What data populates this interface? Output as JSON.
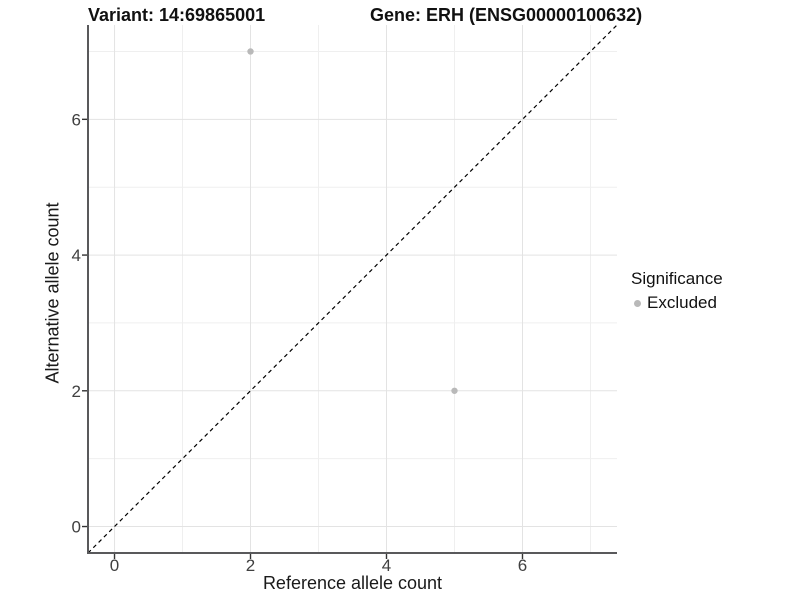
{
  "chart_data": {
    "type": "scatter",
    "title_left": "Variant: 14:69865001",
    "title_right": "Gene: ERH (ENSG00000100632)",
    "xlabel": "Reference allele count",
    "ylabel": "Alternative allele count",
    "xlim": [
      -0.39,
      7.39
    ],
    "ylim": [
      -0.39,
      7.39
    ],
    "x_major_ticks": [
      0,
      2,
      4,
      6
    ],
    "y_major_ticks": [
      0,
      2,
      4,
      6
    ],
    "x_minor_gridlines": [
      1,
      3,
      5,
      7
    ],
    "y_minor_gridlines": [
      1,
      3,
      5,
      7
    ],
    "grid": "on",
    "reference_line": {
      "type": "identity",
      "style": "dashed",
      "color": "#000000"
    },
    "series": [
      {
        "name": "Excluded",
        "color": "#b9b9b9",
        "points": [
          {
            "x": 2,
            "y": 7
          },
          {
            "x": 5,
            "y": 2
          }
        ]
      }
    ],
    "legend": {
      "title": "Significance",
      "position": "right",
      "entries": [
        {
          "label": "Excluded",
          "color": "#b9b9b9"
        }
      ]
    },
    "colors": {
      "grid_major": "#e3e3e3",
      "grid_minor": "#efefef",
      "axis_line": "#59595b",
      "tick_mark": "#333333",
      "tick_text": "#404040"
    }
  }
}
